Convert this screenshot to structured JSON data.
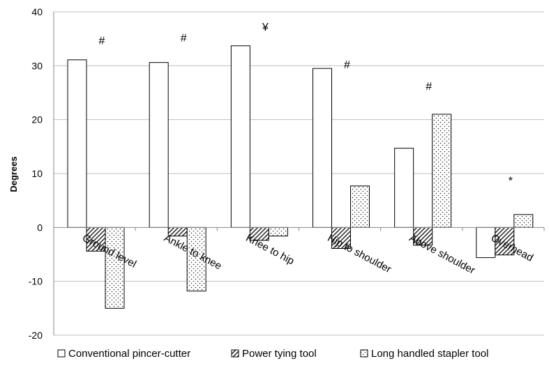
{
  "chart_data": {
    "type": "bar",
    "title": "",
    "xlabel": "",
    "ylabel": "Degrees",
    "ylim": [
      -20,
      40
    ],
    "yticks": [
      -20,
      -10,
      0,
      10,
      20,
      30,
      40
    ],
    "grid": true,
    "legend_position": "bottom",
    "categories": [
      "Ground level",
      "Ankle to knee",
      "Knee to hip",
      "Hip to shoulder",
      "Above shoulder",
      "Overhead"
    ],
    "series": [
      {
        "name": "Conventional pincer-cutter",
        "pattern": "plain",
        "values": [
          31.1,
          30.6,
          33.7,
          29.5,
          14.7,
          -5.6
        ]
      },
      {
        "name": "Power tying tool",
        "pattern": "hatched",
        "values": [
          -4.4,
          -1.6,
          -2.4,
          -3.9,
          -3.3,
          -5.1
        ]
      },
      {
        "name": "Long handled stapler tool",
        "pattern": "dotted",
        "values": [
          -15.0,
          -11.8,
          -1.6,
          7.7,
          21.0,
          2.4
        ]
      }
    ],
    "annotations": [
      {
        "text": "#",
        "category": 0,
        "y": 34
      },
      {
        "text": "#",
        "category": 1,
        "y": 34.5
      },
      {
        "text": "¥",
        "category": 2,
        "y": 36.5
      },
      {
        "text": "#",
        "category": 3,
        "y": 29.5
      },
      {
        "text": "#",
        "category": 4,
        "y": 25.5
      },
      {
        "text": "*",
        "category": 5,
        "y": 8
      }
    ],
    "colors": {
      "bar_stroke": "#000000",
      "bar_fill": "#ffffff",
      "grid": "#bfbfbf"
    }
  }
}
